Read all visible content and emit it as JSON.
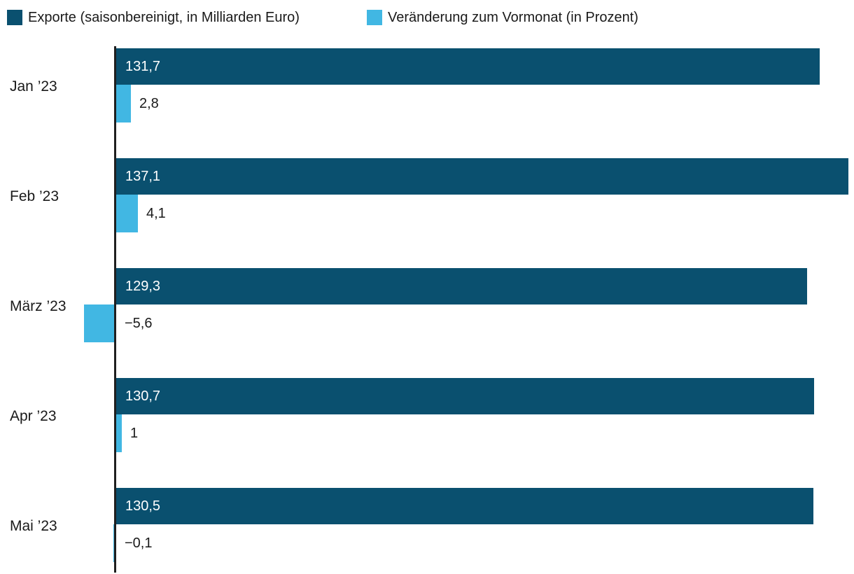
{
  "chart_data": {
    "type": "bar",
    "orientation": "horizontal",
    "title": "",
    "legend_position": "top",
    "grid": false,
    "value_axis_labels_hidden": true,
    "categories": [
      "Jan ’23",
      "Feb ’23",
      "März ’23",
      "Apr ’23",
      "Mai ’23"
    ],
    "series": [
      {
        "name": "Exporte (saisonbereinigt, in Milliarden Euro)",
        "color": "#0a506f",
        "values": [
          131.7,
          137.1,
          129.3,
          130.7,
          130.5
        ],
        "labels": [
          "131,7",
          "137,1",
          "129,3",
          "130,7",
          "130,5"
        ]
      },
      {
        "name": "Veränderung zum Vormonat (in Prozent)",
        "color": "#41b7e3",
        "values": [
          2.8,
          4.1,
          -5.6,
          1,
          -0.1
        ],
        "labels": [
          "2,8",
          "4,1",
          "−5,6",
          "1",
          "−0,1"
        ]
      }
    ]
  },
  "colors": {
    "exports_bar": "#0a506f",
    "change_bar": "#41b7e3",
    "axis": "#1f1f1f",
    "text": "#1a1a1a",
    "bar_value_text": "#ffffff",
    "background": "#ffffff"
  }
}
